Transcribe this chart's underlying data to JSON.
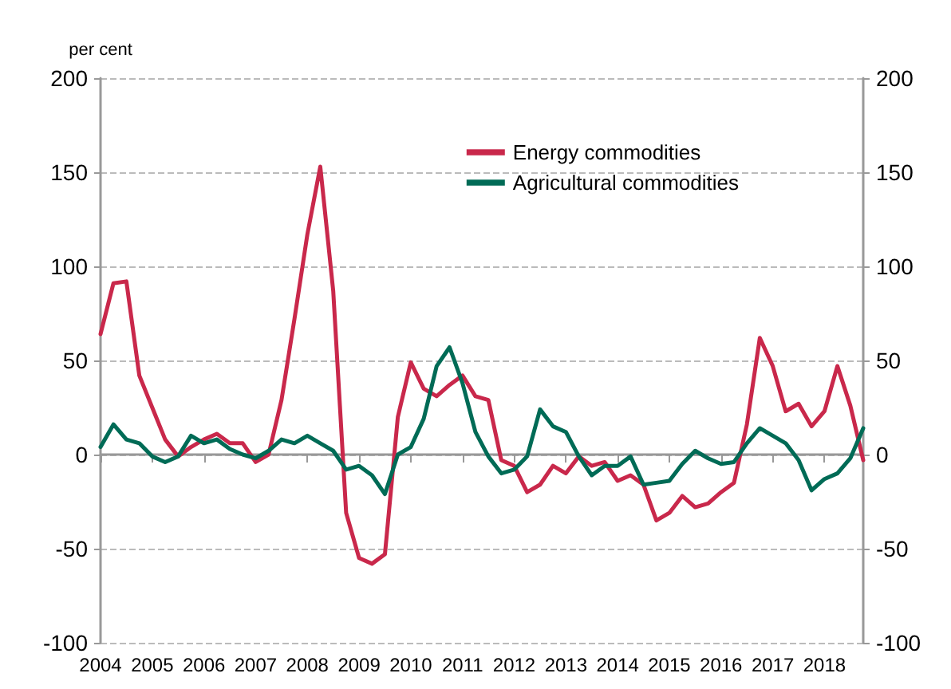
{
  "chart_data": {
    "type": "line",
    "ylabel": "per cent",
    "x": [
      2004,
      2004.25,
      2004.5,
      2004.75,
      2005,
      2005.25,
      2005.5,
      2005.75,
      2006,
      2006.25,
      2006.5,
      2006.75,
      2007,
      2007.25,
      2007.5,
      2007.75,
      2008,
      2008.25,
      2008.5,
      2008.75,
      2009,
      2009.25,
      2009.5,
      2009.75,
      2010,
      2010.25,
      2010.5,
      2010.75,
      2011,
      2011.25,
      2011.5,
      2011.75,
      2012,
      2012.25,
      2012.5,
      2012.75,
      2013,
      2013.25,
      2013.5,
      2013.75,
      2014,
      2014.25,
      2014.5,
      2014.75,
      2015,
      2015.25,
      2015.5,
      2015.75,
      2016,
      2016.25,
      2016.5,
      2016.75,
      2017,
      2017.25,
      2017.5,
      2017.75,
      2018,
      2018.25,
      2018.5,
      2018.75
    ],
    "series": [
      {
        "name": "Energy commodities",
        "color": "#c9284b",
        "values": [
          64,
          91,
          92,
          42,
          25,
          8,
          -1,
          4,
          8,
          11,
          6,
          6,
          -4,
          0,
          29,
          72,
          117,
          153,
          87,
          -31,
          -55,
          -58,
          -53,
          20,
          49,
          35,
          31,
          37,
          42,
          31,
          29,
          -3,
          -6,
          -20,
          -16,
          -6,
          -10,
          -1,
          -6,
          -4,
          -14,
          -11,
          -16,
          -35,
          -31,
          -22,
          -28,
          -26,
          -20,
          -15,
          16,
          62,
          47,
          23,
          27,
          15,
          23,
          47,
          26,
          -3
        ]
      },
      {
        "name": "Agricultural commodities",
        "color": "#006b56",
        "values": [
          4,
          16,
          8,
          6,
          -1,
          -4,
          -1,
          10,
          6,
          8,
          3,
          0,
          -2,
          2,
          8,
          6,
          10,
          6,
          2,
          -8,
          -6,
          -11,
          -21,
          0,
          4,
          19,
          47,
          57,
          38,
          12,
          -1,
          -10,
          -8,
          -1,
          24,
          15,
          12,
          -1,
          -11,
          -6,
          -6,
          -1,
          -16,
          -15,
          -14,
          -5,
          2,
          -2,
          -5,
          -4,
          6,
          14,
          10,
          6,
          -3,
          -19,
          -13,
          -10,
          -2,
          14
        ]
      }
    ],
    "xlim": [
      2004,
      2018.75
    ],
    "xticks": [
      2004,
      2005,
      2006,
      2007,
      2008,
      2009,
      2010,
      2011,
      2012,
      2013,
      2014,
      2015,
      2016,
      2017,
      2018
    ],
    "ylim": [
      -100,
      200
    ],
    "yticks": [
      -100,
      -50,
      0,
      50,
      100,
      150,
      200
    ],
    "y2lim": [
      -100,
      200
    ],
    "y2ticks": [
      -100,
      -50,
      0,
      50,
      100,
      150,
      200
    ],
    "grid": "y",
    "legend": "top right",
    "marker": "none",
    "line_style": "solid"
  }
}
